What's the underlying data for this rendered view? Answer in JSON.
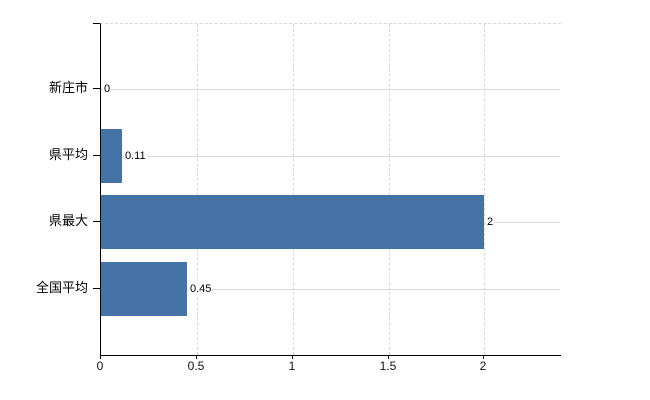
{
  "chart_data": {
    "type": "bar",
    "orientation": "horizontal",
    "title": "",
    "xlabel": "",
    "ylabel": "",
    "categories": [
      "新庄市",
      "県平均",
      "県最大",
      "全国平均"
    ],
    "values": [
      0,
      0.11,
      2,
      0.45
    ],
    "value_labels": [
      "0",
      "0.11",
      "2",
      "0.45"
    ],
    "x_ticks": [
      0,
      0.5,
      1,
      1.5,
      2
    ],
    "x_tick_labels": [
      "0",
      "0.5",
      "1",
      "1.5",
      "2"
    ],
    "xlim": [
      0,
      2.4
    ],
    "grid": true,
    "legend": false,
    "colors": {
      "bar": "#4572a7",
      "grid": "#d8d8d8",
      "axis": "#000000",
      "text": "#000000",
      "background": "#ffffff"
    }
  }
}
